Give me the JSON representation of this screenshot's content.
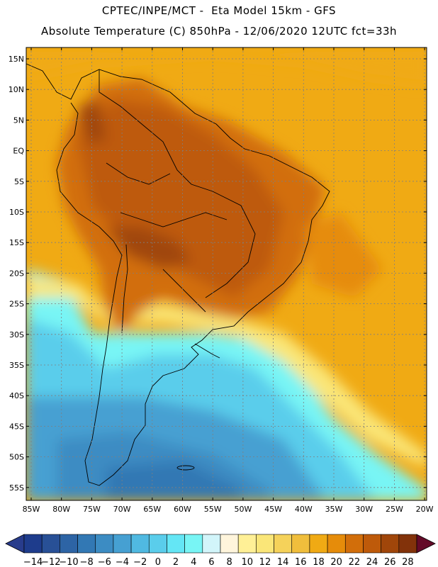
{
  "header": {
    "line1": "CPTEC/INPE/MCT -  Eta Model 15km - GFS",
    "line2": "Absolute Temperature (C) 850hPa - 12/06/2020 12UTC fct=33h"
  },
  "map": {
    "lat_labels": [
      "15N",
      "10N",
      "5N",
      "EQ",
      "5S",
      "10S",
      "15S",
      "20S",
      "25S",
      "30S",
      "35S",
      "40S",
      "45S",
      "50S",
      "55S"
    ],
    "lon_labels": [
      "85W",
      "80W",
      "75W",
      "70W",
      "65W",
      "60W",
      "55W",
      "50W",
      "45W",
      "40W",
      "35W",
      "30W",
      "25W",
      "20W"
    ]
  },
  "colorbar": {
    "labels": [
      "-14",
      "-12",
      "-10",
      "-8",
      "-6",
      "-4",
      "-2",
      "0",
      "2",
      "4",
      "6",
      "8",
      "10",
      "12",
      "14",
      "16",
      "18",
      "20",
      "22",
      "24",
      "26",
      "28"
    ],
    "colors": [
      "#1e3c8c",
      "#285096",
      "#2d64a5",
      "#3278b4",
      "#3c8cc3",
      "#46a0d2",
      "#50b9e1",
      "#5acdeb",
      "#64e6f5",
      "#78f5f5",
      "#d2f5fa",
      "#fff5dc",
      "#fff096",
      "#fae678",
      "#f5d25a",
      "#f0be3c",
      "#f0aa14",
      "#e68c0a",
      "#d26e0a",
      "#be5a0a",
      "#a0460a",
      "#82320a"
    ],
    "under_color": "#283c8c",
    "over_color": "#640a28"
  }
}
